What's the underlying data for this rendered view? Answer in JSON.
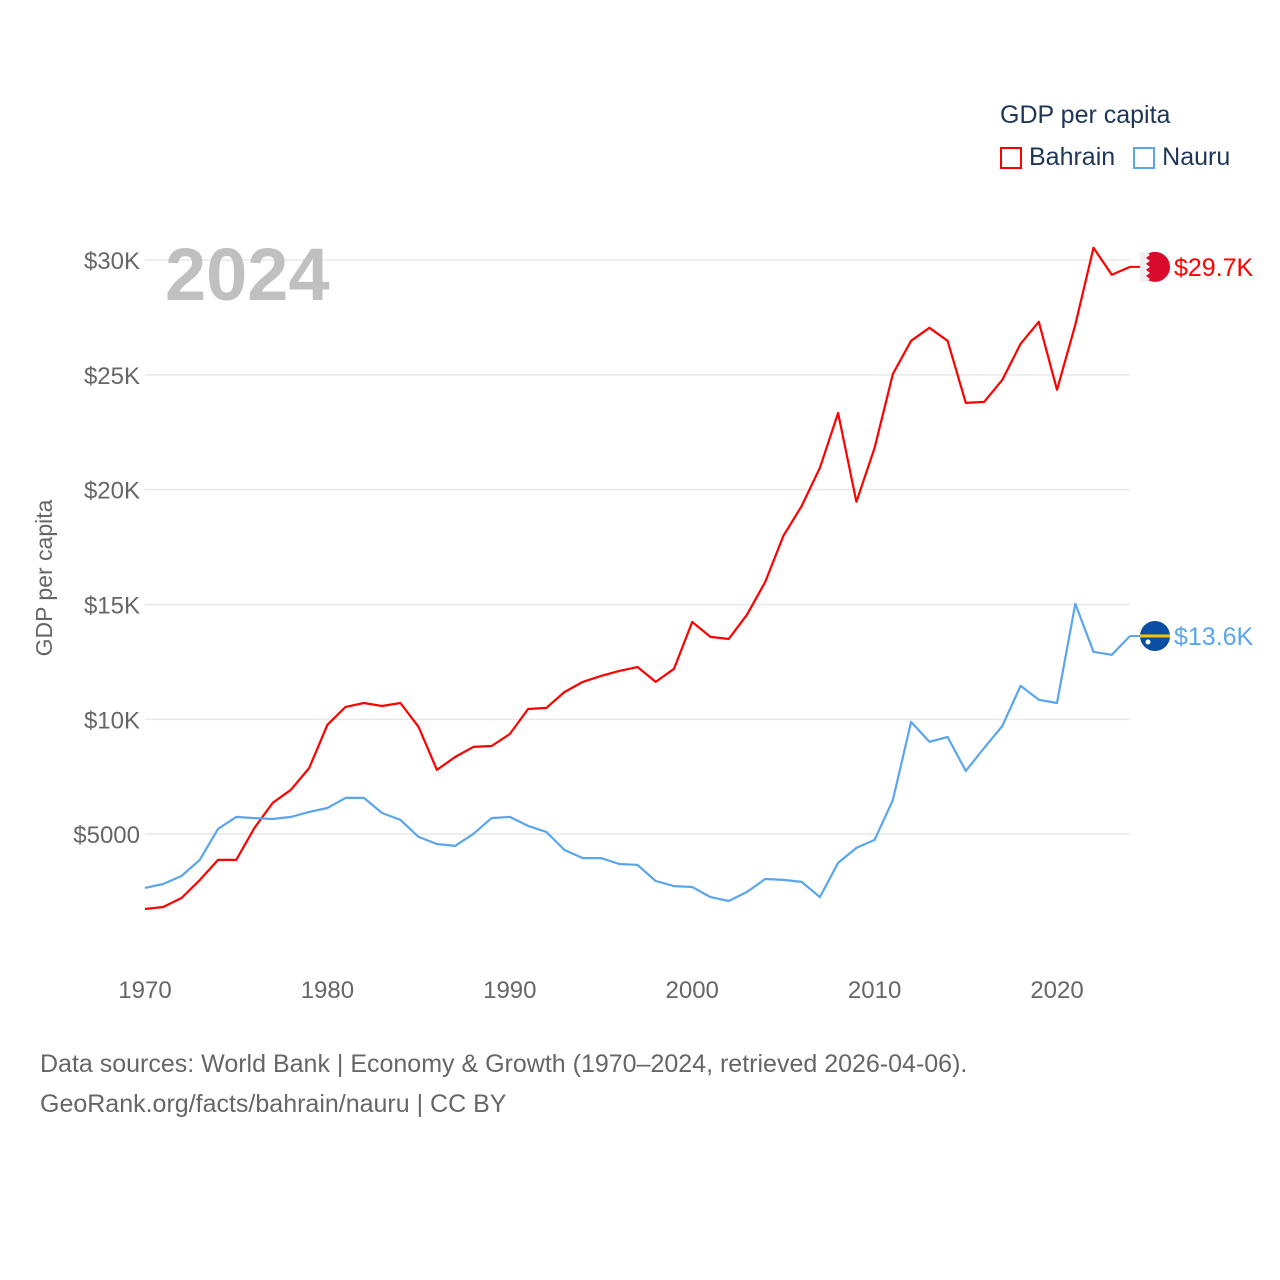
{
  "legend": {
    "title": "GDP per capita"
  },
  "footer": {
    "line1": "Data sources: World Bank | Economy & Growth (1970–2024, retrieved 2026-04-06).",
    "line2": "GeoRank.org/facts/bahrain/nauru | CC BY"
  },
  "chart_data": {
    "type": "line",
    "year_label": "2024",
    "ylabel": "GDP per capita",
    "xlabel": "",
    "xlim": [
      1970,
      2024
    ],
    "ylim": [
      0,
      30000
    ],
    "grid": true,
    "legend_placement": "top-right",
    "x_ticks": [
      1970,
      1980,
      1990,
      2000,
      2010,
      2020
    ],
    "x_tick_labels": [
      "1970",
      "1980",
      "1990",
      "2000",
      "2010",
      "2020"
    ],
    "y_ticks": [
      5000,
      10000,
      15000,
      20000,
      25000,
      30000
    ],
    "y_tick_labels": [
      "$5000",
      "$10K",
      "$15K",
      "$20K",
      "$25K",
      "$30K"
    ],
    "x": [
      1970,
      1971,
      1972,
      1973,
      1974,
      1975,
      1976,
      1977,
      1978,
      1979,
      1980,
      1981,
      1982,
      1983,
      1984,
      1985,
      1986,
      1987,
      1988,
      1989,
      1990,
      1991,
      1992,
      1993,
      1994,
      1995,
      1996,
      1997,
      1998,
      1999,
      2000,
      2001,
      2002,
      2003,
      2004,
      2005,
      2006,
      2007,
      2008,
      2009,
      2010,
      2011,
      2012,
      2013,
      2014,
      2015,
      2016,
      2017,
      2018,
      2019,
      2020,
      2021,
      2022,
      2023,
      2024
    ],
    "series": [
      {
        "name": "Bahrain",
        "color": "#ff0000",
        "end_label": "$29.7K",
        "flag": "bahrain-flag",
        "values": [
          1740,
          1830,
          2220,
          3000,
          3880,
          3880,
          5270,
          6360,
          6930,
          7880,
          9760,
          10540,
          10710,
          10580,
          10710,
          9670,
          7800,
          8360,
          8800,
          8840,
          9360,
          10450,
          10500,
          11190,
          11630,
          11890,
          12110,
          12280,
          11630,
          12200,
          14240,
          13590,
          13500,
          14550,
          15980,
          17990,
          19290,
          20950,
          23340,
          19470,
          21820,
          25040,
          26480,
          27050,
          26480,
          23780,
          23820,
          24780,
          26350,
          27310,
          24350,
          27180,
          30530,
          29360,
          29700
        ]
      },
      {
        "name": "Nauru",
        "color": "#5aa5ec",
        "end_label": "$13.6K",
        "flag": "nauru-flag",
        "values": [
          2660,
          2830,
          3180,
          3880,
          5230,
          5750,
          5700,
          5660,
          5750,
          5970,
          6140,
          6580,
          6580,
          5920,
          5620,
          4880,
          4570,
          4490,
          5010,
          5700,
          5750,
          5360,
          5100,
          4310,
          3960,
          3960,
          3700,
          3660,
          2960,
          2740,
          2700,
          2260,
          2090,
          2480,
          3050,
          3010,
          2920,
          2260,
          3750,
          4400,
          4750,
          6490,
          9890,
          9020,
          9230,
          7750,
          8750,
          9710,
          11460,
          10850,
          10710,
          15030,
          12940,
          12810,
          13630
        ]
      }
    ]
  }
}
